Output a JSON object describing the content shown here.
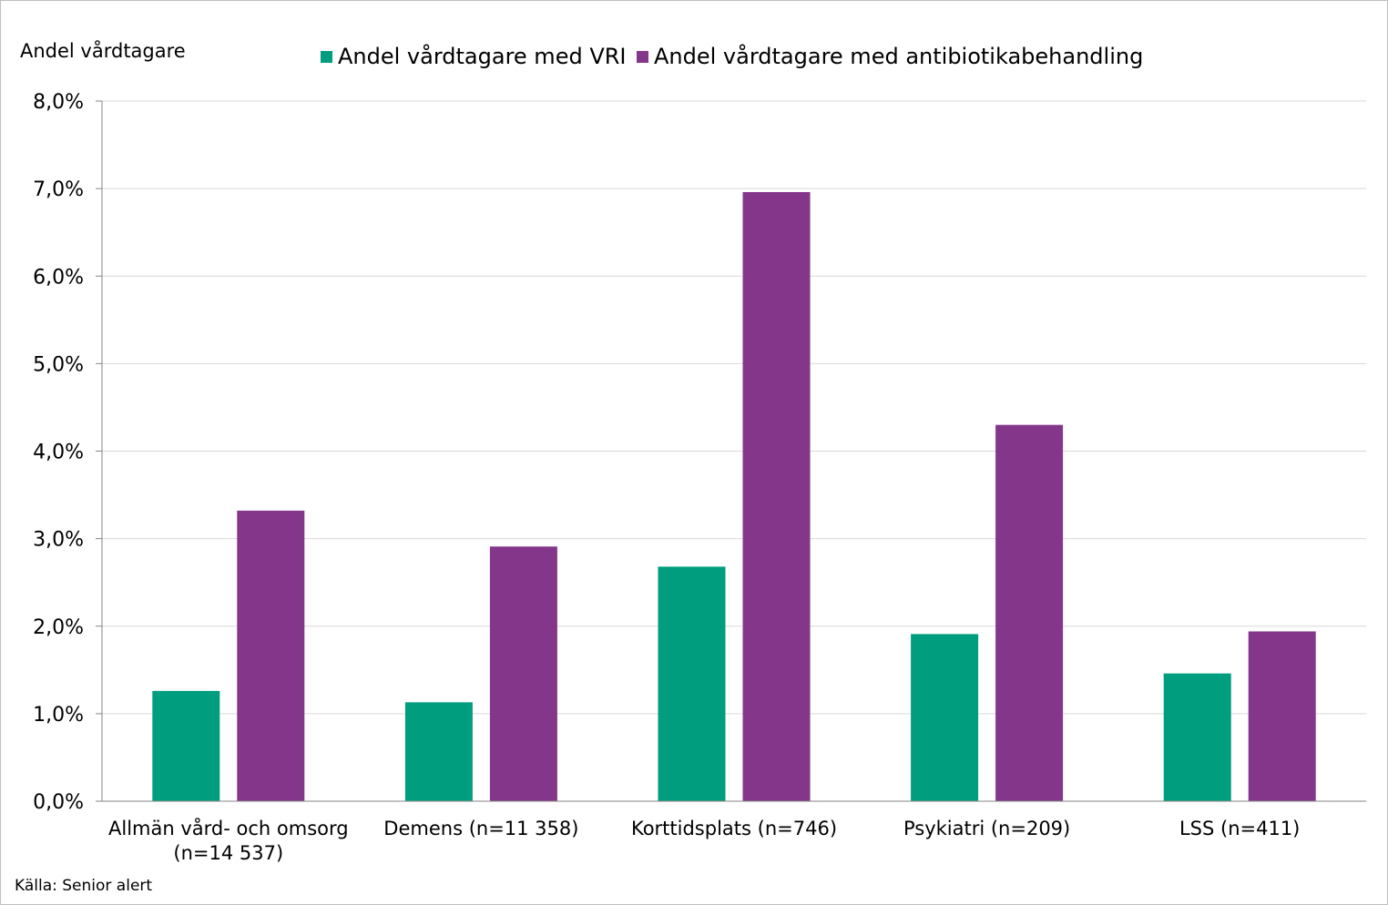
{
  "chart_data": {
    "type": "bar",
    "ylabel": "Andel vårdtagare",
    "source": "Källa: Senior alert",
    "ylim": [
      0,
      8
    ],
    "yticks": [
      "0,0%",
      "1,0%",
      "2,0%",
      "3,0%",
      "4,0%",
      "5,0%",
      "6,0%",
      "7,0%",
      "8,0%"
    ],
    "categories": [
      "Allmän vård- och omsorg\n(n=14 537)",
      "Demens (n=11 358)",
      "Korttidsplats (n=746)",
      "Psykiatri (n=209)",
      "LSS (n=411)"
    ],
    "series": [
      {
        "name": "Andel vårdtagare med VRI",
        "color": "#009e7e",
        "values": [
          1.26,
          1.13,
          2.68,
          1.91,
          1.46
        ]
      },
      {
        "name": "Andel vårdtagare med antibiotikabehandling",
        "color": "#84368b",
        "values": [
          3.32,
          2.91,
          6.96,
          4.3,
          1.94
        ]
      }
    ],
    "grid": true,
    "legend_position": "top"
  }
}
